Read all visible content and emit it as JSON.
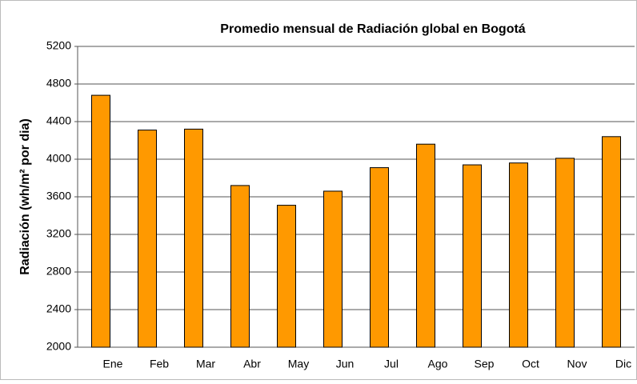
{
  "chart_data": {
    "type": "bar",
    "title": "Promedio mensual de Radiación global en Bogotá",
    "y_label": "Radiación (wh/m² por dia)",
    "categories": [
      "Ene",
      "Feb",
      "Mar",
      "Abr",
      "May",
      "Jun",
      "Jul",
      "Ago",
      "Sep",
      "Oct",
      "Nov",
      "Dic"
    ],
    "values": [
      4680,
      4310,
      4320,
      3720,
      3510,
      3660,
      3910,
      4160,
      3940,
      3960,
      4010,
      4240
    ],
    "color": "#ff9900",
    "ylim": [
      2000,
      5200
    ],
    "yticks": [
      2000,
      2400,
      2800,
      3200,
      3600,
      4000,
      4400,
      4800,
      5200
    ],
    "grid": true
  }
}
